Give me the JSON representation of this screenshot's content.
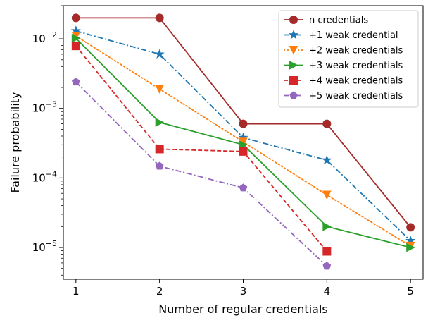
{
  "chart_data": {
    "type": "line",
    "title": "",
    "xlabel": "Number of regular credentials",
    "ylabel": "Failure probability",
    "yscale": "log",
    "xlim": [
      0.85,
      5.15
    ],
    "ylim": [
      3.5e-06,
      0.03
    ],
    "grid": false,
    "legend_position": "top-right",
    "x_ticks": [
      "1",
      "2",
      "3",
      "4",
      "5"
    ],
    "y_ticks": [
      {
        "value": 0.01,
        "mantissa": "10",
        "exp": "−2"
      },
      {
        "value": 0.001,
        "mantissa": "10",
        "exp": "−3"
      },
      {
        "value": 0.0001,
        "mantissa": "10",
        "exp": "−4"
      },
      {
        "value": 1e-05,
        "mantissa": "10",
        "exp": "−5"
      }
    ],
    "series": [
      {
        "name": "n credentials",
        "color": "#a52a2a",
        "dash": "solid",
        "marker": "circle",
        "x": [
          1,
          2,
          3,
          4,
          5
        ],
        "values": [
          0.02,
          0.02,
          0.0006,
          0.0006,
          1.95e-05
        ]
      },
      {
        "name": "+1 weak credential",
        "color": "#1f77b4",
        "dash": "dashdot",
        "marker": "star",
        "x": [
          1,
          2,
          3,
          4,
          5
        ],
        "values": [
          0.013,
          0.006,
          0.00038,
          0.00018,
          1.25e-05
        ]
      },
      {
        "name": "+2 weak credentials",
        "color": "#ff7f0e",
        "dash": "dotted",
        "marker": "triangle-down",
        "x": [
          1,
          2,
          3,
          4,
          5
        ],
        "values": [
          0.011,
          0.0019,
          0.00033,
          5.7e-05,
          1.05e-05
        ]
      },
      {
        "name": "+3 weak credentials",
        "color": "#2ca02c",
        "dash": "solid",
        "marker": "triangle-right",
        "x": [
          1,
          2,
          3,
          4,
          5
        ],
        "values": [
          0.0102,
          0.00063,
          0.0003,
          2e-05,
          1e-05
        ]
      },
      {
        "name": "+4 weak credentials",
        "color": "#d62728",
        "dash": "dashed",
        "marker": "square",
        "x": [
          1,
          2,
          3,
          4
        ],
        "values": [
          0.0079,
          0.00026,
          0.00024,
          8.8e-06
        ]
      },
      {
        "name": "+5 weak credentials",
        "color": "#9467bd",
        "dash": "dashdot",
        "marker": "pentagon",
        "x": [
          1,
          2,
          3,
          4
        ],
        "values": [
          0.0024,
          0.000148,
          7.2e-05,
          5.4e-06
        ]
      }
    ]
  }
}
